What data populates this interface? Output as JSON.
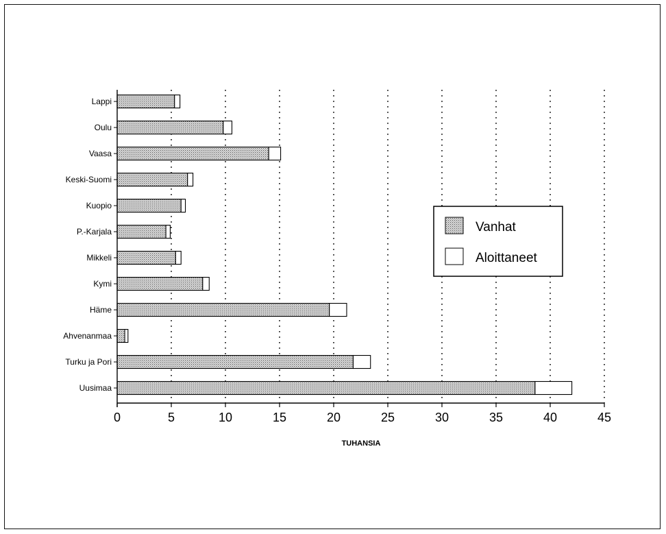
{
  "chart_data": {
    "type": "bar",
    "orientation": "horizontal",
    "stacked": true,
    "categories": [
      "Lappi",
      "Oulu",
      "Vaasa",
      "Keski-Suomi",
      "Kuopio",
      "P.-Karjala",
      "Mikkeli",
      "Kymi",
      "Häme",
      "Ahvenanmaa",
      "Turku ja Pori",
      "Uusimaa"
    ],
    "series": [
      {
        "name": "Vanhat",
        "values": [
          5.3,
          9.8,
          14.0,
          6.5,
          5.9,
          4.5,
          5.4,
          7.9,
          19.6,
          0.7,
          21.8,
          38.6
        ],
        "color": "#c8c8c8",
        "pattern": "dotted"
      },
      {
        "name": "Aloittaneet",
        "values": [
          0.5,
          0.8,
          1.1,
          0.5,
          0.4,
          0.4,
          0.5,
          0.6,
          1.6,
          0.3,
          1.6,
          3.4
        ],
        "color": "#ffffff"
      }
    ],
    "xlabel": "TUHANSIA",
    "ylabel": "",
    "title": "",
    "xlim": [
      0,
      45
    ],
    "xticks": [
      0,
      5,
      10,
      15,
      20,
      25,
      30,
      35,
      40,
      45
    ],
    "grid": "vertical dotted",
    "legend_position": "right"
  }
}
